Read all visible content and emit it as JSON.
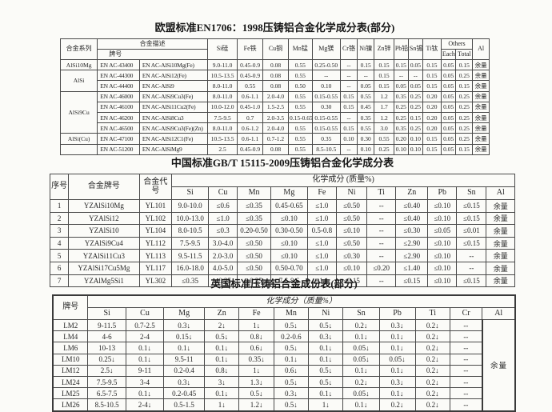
{
  "en_table": {
    "title": "欧盟标准EN1706：1998压铸铝合金化学成分表(部分)",
    "headers": {
      "series": "合金系列",
      "desc_group": "合金描述",
      "grade": "牌号",
      "others": "Others",
      "each": "Each",
      "total": "Total",
      "al": "Al",
      "elements": [
        "Si硅",
        "Fe铁",
        "Cu铜",
        "Mn锰",
        "Mg镁",
        "Cr铬",
        "Ni镍",
        "Zn锌",
        "Pb铅",
        "Sn锡",
        "Ti钛"
      ]
    },
    "rows": [
      {
        "series": "AlSi10Mg",
        "series_span": 1,
        "grade": "EN AC-43400",
        "desc": "EN AC-AlSi10Mg(Fe)",
        "vals": [
          "9.0-11.0",
          "0.45-0.9",
          "0.08",
          "0.55",
          "0.25-0.50",
          "--",
          "0.15",
          "0.15",
          "0.15",
          "0.05",
          "0.15",
          "0.05",
          "0.15",
          "余量"
        ]
      },
      {
        "series": "AlSi",
        "series_span": 2,
        "grade": "EN AC-44300",
        "desc": "EN AC-AlSi12(Fe)",
        "vals": [
          "10.5-13.5",
          "0.45-0.9",
          "0.08",
          "0.55",
          "--",
          "--",
          "--",
          "0.15",
          "--",
          "--",
          "0.15",
          "0.05",
          "0.25",
          "余量"
        ]
      },
      {
        "grade": "EN AC-44400",
        "desc": "EN AC-AlSi9",
        "vals": [
          "8.0-11.0",
          "0.55",
          "0.08",
          "0.50",
          "0.10",
          "--",
          "0.05",
          "0.15",
          "0.05",
          "0.05",
          "0.15",
          "0.05",
          "0.15",
          "余量"
        ]
      },
      {
        "series": "AlSi9Cu",
        "series_span": 4,
        "grade": "EN AC-46000",
        "desc": "EN AC-AlSi9Cu3(Fe)",
        "vals": [
          "8.0-11.0",
          "0.6-1.1",
          "2.0-4.0",
          "0.55",
          "0.15-0.55",
          "0.15",
          "0.55",
          "1.2",
          "0.35",
          "0.25",
          "0.20",
          "0.05",
          "0.25",
          "余量"
        ]
      },
      {
        "grade": "EN AC-46100",
        "desc": "EN AC-AlSi11Cu2(Fe)",
        "vals": [
          "10.0-12.0",
          "0.45-1.0",
          "1.5-2.5",
          "0.55",
          "0.30",
          "0.15",
          "0.45",
          "1.7",
          "0.25",
          "0.25",
          "0.20",
          "0.05",
          "0.25",
          "余量"
        ]
      },
      {
        "grade": "EN AC-46200",
        "desc": "EN AC-AlSi8Cu3",
        "vals": [
          "7.5-9.5",
          "0.7",
          "2.0-3.5",
          "0.15-0.65",
          "0.15-0.55",
          "--",
          "0.35",
          "1.2",
          "0.25",
          "0.15",
          "0.20",
          "0.05",
          "0.25",
          "余量"
        ]
      },
      {
        "grade": "EN AC-46500",
        "desc": "EN AC-AlSi9Cu3(Fe)(Zn)",
        "vals": [
          "8.0-11.0",
          "0.6-1.2",
          "2.0-4.0",
          "0.55",
          "0.15-0.55",
          "0.15",
          "0.55",
          "3.0",
          "0.35",
          "0.25",
          "0.20",
          "0.05",
          "0.25",
          "余量"
        ]
      },
      {
        "series": "AlSi(Cu)",
        "series_span": 1,
        "grade": "EN AC-47100",
        "desc": "EN AC-AlSi12C1(Fe)",
        "vals": [
          "10.5-13.5",
          "0.6-1.1",
          "0.7-1.2",
          "0.55",
          "0.35",
          "0.10",
          "0.30",
          "0.55",
          "0.20",
          "0.10",
          "0.15",
          "0.05",
          "0.25",
          "余量"
        ]
      },
      {
        "series": "",
        "series_span": 1,
        "grade": "EN AC-51200",
        "desc": "EN AC-AlSiMg9",
        "vals": [
          "2.5",
          "0.45-0.9",
          "0.08",
          "0.55",
          "8.5-10.5",
          "--",
          "0.10",
          "0.25",
          "0.10",
          "0.10",
          "0.15",
          "0.05",
          "0.15",
          "余量"
        ]
      }
    ]
  },
  "cn_table": {
    "title": "中国标准GB/T 15115-2009压铸铝合金化学成分表",
    "headers": {
      "no": "序号",
      "grade": "合金牌号",
      "code": "合金代号",
      "group": "化学成分 (质量%)",
      "elements": [
        "Si",
        "Cu",
        "Mn",
        "Mg",
        "Fe",
        "Ni",
        "Ti",
        "Zn",
        "Pb",
        "Sn",
        "Al"
      ]
    },
    "rows": [
      {
        "no": "1",
        "grade": "YZAlSi10Mg",
        "code": "YL101",
        "vals": [
          "9.0-10.0",
          "≤0.6",
          "≤0.35",
          "0.45-0.65",
          "≤1.0",
          "≤0.50",
          "--",
          "≤0.40",
          "≤0.10",
          "≤0.15",
          "余量"
        ]
      },
      {
        "no": "2",
        "grade": "YZAlSi12",
        "code": "YL102",
        "vals": [
          "10.0-13.0",
          "≤1.0",
          "≤0.35",
          "≤0.10",
          "≤1.0",
          "≤0.50",
          "--",
          "≤0.40",
          "≤0.10",
          "≤0.15",
          "余量"
        ]
      },
      {
        "no": "3",
        "grade": "YZAlSi10",
        "code": "YL104",
        "vals": [
          "8.0-10.5",
          "≤0.3",
          "0.20-0.50",
          "0.30-0.50",
          "0.5-0.8",
          "≤0.10",
          "--",
          "≤0.30",
          "≤0.05",
          "≤0.01",
          "余量"
        ]
      },
      {
        "no": "4",
        "grade": "YZAlSi9Cu4",
        "code": "YL112",
        "vals": [
          "7.5-9.5",
          "3.0-4.0",
          "≤0.50",
          "≤0.10",
          "≤1.0",
          "≤0.50",
          "--",
          "≤2.90",
          "≤0.10",
          "≤0.15",
          "余量"
        ]
      },
      {
        "no": "5",
        "grade": "YZAlSi11Cu3",
        "code": "YL113",
        "vals": [
          "9.5-11.5",
          "2.0-3.0",
          "≤0.50",
          "≤0.10",
          "≤1.0",
          "≤0.30",
          "--",
          "≤2.90",
          "≤0.10",
          "--",
          "余量"
        ]
      },
      {
        "no": "6",
        "grade": "YZAlSi17Cu5Mg",
        "code": "YL117",
        "vals": [
          "16.0-18.0",
          "4.0-5.0",
          "≤0.50",
          "0.50-0.70",
          "≤1.0",
          "≤0.10",
          "≤0.20",
          "≤1.40",
          "≤0.10",
          "--",
          "余量"
        ]
      },
      {
        "no": "7",
        "grade": "YZAlMg5Si1",
        "code": "YL302",
        "vals": [
          "≤0.35",
          "≤0.25",
          "≤0.35",
          "7.6-8.6",
          "≤1.1",
          "≤0.15",
          "--",
          "≤0.15",
          "≤0.10",
          "≤0.15",
          "余量"
        ]
      }
    ]
  },
  "uk_table": {
    "title": "英国标准压铸铝合金成份表(部分)",
    "headers": {
      "grade": "牌号",
      "group": "化学成分（质量%）",
      "elements": [
        "Si",
        "Cu",
        "Mg",
        "Zn",
        "Fe",
        "Mn",
        "Ni",
        "Sn",
        "Pb",
        "Ti",
        "Cr",
        "Al"
      ]
    },
    "al_value": "余量",
    "rows": [
      {
        "grade": "LM2",
        "vals": [
          "9-11.5",
          "0.7-2.5",
          "0.3↓",
          "2↓",
          "1↓",
          "0.5↓",
          "0.5↓",
          "0.2↓",
          "0.3↓",
          "0.2↓",
          "--"
        ]
      },
      {
        "grade": "LM4",
        "vals": [
          "4-6",
          "2-4",
          "0.15↓",
          "0.5↓",
          "0.8↓",
          "0.2-0.6",
          "0.3↓",
          "0.1↓",
          "0.1↓",
          "0.2↓",
          "--"
        ]
      },
      {
        "grade": "LM6",
        "vals": [
          "10-13",
          "0.1↓",
          "0.1↓",
          "0.1↓",
          "0.6↓",
          "0.5↓",
          "0.1↓",
          "0.05↓",
          "0.1↓",
          "0.2↓",
          "--"
        ]
      },
      {
        "grade": "LM10",
        "vals": [
          "0.25↓",
          "0.1↓",
          "9.5-11",
          "0.1↓",
          "0.35↓",
          "0.1↓",
          "0.1↓",
          "0.05↓",
          "0.05↓",
          "0.2↓",
          "--"
        ]
      },
      {
        "grade": "LM12",
        "vals": [
          "2.5↓",
          "9-11",
          "0.2-0.4",
          "0.8↓",
          "1↓",
          "0.6↓",
          "0.5↓",
          "0.1↓",
          "0.1↓",
          "0.2↓",
          "--"
        ]
      },
      {
        "grade": "LM24",
        "vals": [
          "7.5-9.5",
          "3-4",
          "0.3↓",
          "3↓",
          "1.3↓",
          "0.5↓",
          "0.5↓",
          "0.2↓",
          "0.3↓",
          "0.2↓",
          "--"
        ]
      },
      {
        "grade": "LM25",
        "vals": [
          "6.5-7.5",
          "0.1↓",
          "0.2-0.45",
          "0.1↓",
          "0.5↓",
          "0.3↓",
          "0.1↓",
          "0.05↓",
          "0.1↓",
          "0.2↓",
          "--"
        ]
      },
      {
        "grade": "LM26",
        "vals": [
          "8.5-10.5",
          "2-4↓",
          "0.5-1.5",
          "1↓",
          "1.2↓",
          "0.5↓",
          "1↓",
          "0.1↓",
          "0.2↓",
          "0.2↓",
          "--"
        ]
      }
    ]
  }
}
